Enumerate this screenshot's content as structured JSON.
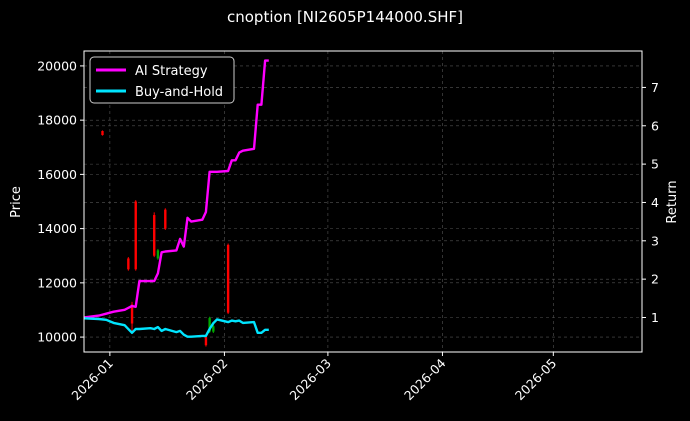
{
  "chart_data": {
    "type": "line",
    "title": "cnoption [NI2605P144000.SHF]",
    "xlabel": "",
    "ylabel": "Price",
    "ylabel_right": "Return",
    "x_ticks": [
      "2026-01",
      "2026-02",
      "2026-03",
      "2026-04",
      "2026-05"
    ],
    "y_ticks_left": [
      10000,
      12000,
      14000,
      16000,
      18000,
      20000
    ],
    "y_ticks_right": [
      1,
      2,
      3,
      4,
      5,
      6,
      7
    ],
    "ylim_left": [
      9450,
      20550
    ],
    "ylim_right": [
      0.1,
      7.95
    ],
    "xlim": [
      "2025-12-25",
      "2026-05-25"
    ],
    "grid": true,
    "legend_position": "upper left",
    "legend": [
      {
        "label": "AI Strategy",
        "color": "#ff00ff"
      },
      {
        "label": "Buy-and-Hold",
        "color": "#00e5ff"
      }
    ],
    "series": [
      {
        "name": "AI Strategy",
        "axis": "right",
        "color": "#ff00ff",
        "x": [
          "2025-12-25",
          "2025-12-29",
          "2025-12-31",
          "2026-01-02",
          "2026-01-05",
          "2026-01-07",
          "2026-01-08",
          "2026-01-09",
          "2026-01-12",
          "2026-01-13",
          "2026-01-14",
          "2026-01-15",
          "2026-01-16",
          "2026-01-19",
          "2026-01-20",
          "2026-01-21",
          "2026-01-22",
          "2026-01-23",
          "2026-01-26",
          "2026-01-27",
          "2026-01-28",
          "2026-01-29",
          "2026-01-30",
          "2026-02-02",
          "2026-02-03",
          "2026-02-04",
          "2026-02-05",
          "2026-02-06",
          "2026-02-09",
          "2026-02-10",
          "2026-02-11",
          "2026-02-12",
          "2026-02-13"
        ],
        "values": [
          1.0,
          1.05,
          1.1,
          1.15,
          1.2,
          1.3,
          1.28,
          1.95,
          1.95,
          1.95,
          2.15,
          2.7,
          2.72,
          2.75,
          3.05,
          2.85,
          3.6,
          3.5,
          3.55,
          3.75,
          4.8,
          4.8,
          4.8,
          4.82,
          5.1,
          5.1,
          5.3,
          5.35,
          5.4,
          6.55,
          6.55,
          7.7,
          7.7
        ]
      },
      {
        "name": "Buy-and-Hold",
        "axis": "right",
        "color": "#00e5ff",
        "x": [
          "2025-12-25",
          "2025-12-29",
          "2025-12-31",
          "2026-01-02",
          "2026-01-05",
          "2026-01-07",
          "2026-01-08",
          "2026-01-09",
          "2026-01-12",
          "2026-01-13",
          "2026-01-14",
          "2026-01-15",
          "2026-01-16",
          "2026-01-19",
          "2026-01-20",
          "2026-01-21",
          "2026-01-22",
          "2026-01-23",
          "2026-01-26",
          "2026-01-27",
          "2026-01-28",
          "2026-01-29",
          "2026-01-30",
          "2026-02-02",
          "2026-02-03",
          "2026-02-04",
          "2026-02-05",
          "2026-02-06",
          "2026-02-09",
          "2026-02-10",
          "2026-02-11",
          "2026-02-12",
          "2026-02-13"
        ],
        "values": [
          0.98,
          0.96,
          0.94,
          0.86,
          0.8,
          0.6,
          0.7,
          0.7,
          0.72,
          0.7,
          0.75,
          0.65,
          0.7,
          0.62,
          0.65,
          0.55,
          0.5,
          0.5,
          0.52,
          0.52,
          0.7,
          0.85,
          0.95,
          0.88,
          0.92,
          0.9,
          0.92,
          0.86,
          0.88,
          0.6,
          0.6,
          0.68,
          0.68
        ]
      }
    ],
    "candles": [
      {
        "x": "2025-12-30",
        "open": 17600,
        "close": 17450,
        "high": 17620,
        "low": 17430,
        "color": "#ff0000"
      },
      {
        "x": "2026-01-06",
        "open": 12900,
        "close": 12500,
        "high": 12950,
        "low": 12450,
        "color": "#ff0000"
      },
      {
        "x": "2026-01-07",
        "open": 11200,
        "close": 10500,
        "high": 11300,
        "low": 10150,
        "color": "#ff0000"
      },
      {
        "x": "2026-01-08",
        "open": 15000,
        "close": 12500,
        "high": 15050,
        "low": 12450,
        "color": "#ff0000"
      },
      {
        "x": "2026-01-13",
        "open": 14500,
        "close": 13000,
        "high": 14600,
        "low": 12950,
        "color": "#ff0000"
      },
      {
        "x": "2026-01-14",
        "open": 13200,
        "close": 12900,
        "high": 13250,
        "low": 12850,
        "color": "#00aa00"
      },
      {
        "x": "2026-01-16",
        "open": 14700,
        "close": 14000,
        "high": 14750,
        "low": 13950,
        "color": "#ff0000"
      },
      {
        "x": "2026-01-27",
        "open": 10000,
        "close": 9700,
        "high": 10050,
        "low": 9650,
        "color": "#ff0000"
      },
      {
        "x": "2026-01-28",
        "open": 10200,
        "close": 10700,
        "high": 10750,
        "low": 10150,
        "color": "#00aa00"
      },
      {
        "x": "2026-01-29",
        "open": 10200,
        "close": 10400,
        "high": 10450,
        "low": 10150,
        "color": "#00aa00"
      },
      {
        "x": "2026-02-02",
        "open": 13400,
        "close": 10900,
        "high": 13450,
        "low": 10850,
        "color": "#ff0000"
      }
    ]
  },
  "colors": {
    "background": "#000000",
    "axes": "#ffffff",
    "grid": "#555555",
    "ai_strategy": "#ff00ff",
    "buy_and_hold": "#00e5ff",
    "candle_down": "#ff0000",
    "candle_up": "#00aa00"
  }
}
